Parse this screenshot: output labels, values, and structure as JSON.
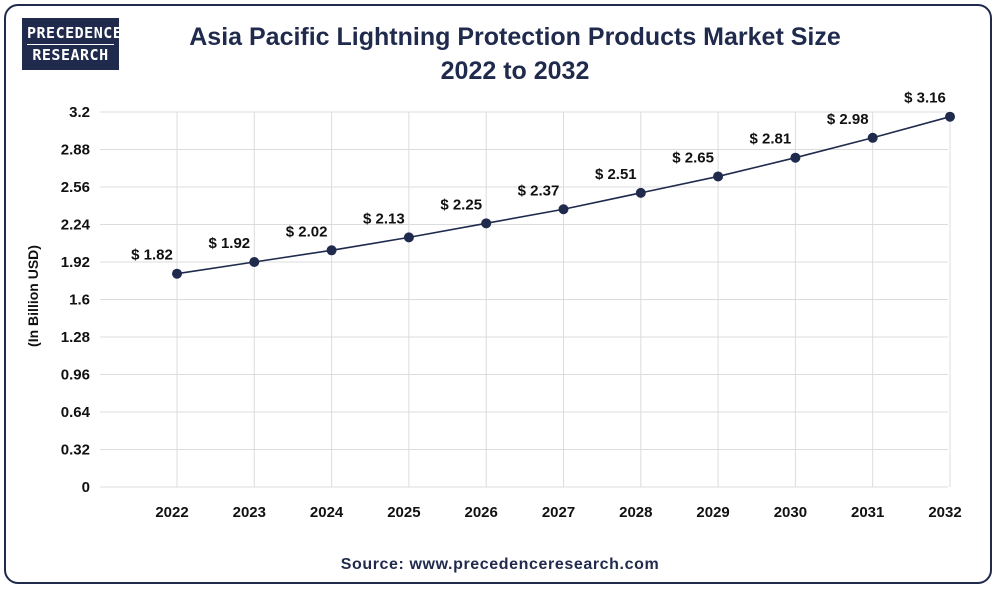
{
  "brand": {
    "line1": "PRECEDENCE",
    "line2": "RESEARCH"
  },
  "source": "Source: www.precedenceresearch.com",
  "colors": {
    "line": "#1f2a4d",
    "grid": "#dcdcdc",
    "text": "#111111",
    "title": "#1f2a4d"
  },
  "chart_data": {
    "type": "line",
    "title": "Asia Pacific Lightning Protection Products Market Size",
    "subtitle": "2022 to 2032",
    "xlabel": "",
    "ylabel": "(In Billion USD)",
    "ylim": [
      0,
      3.2
    ],
    "yticks": [
      "0",
      "0.32",
      "0.64",
      "0.96",
      "1.28",
      "1.6",
      "1.92",
      "2.24",
      "2.56",
      "2.88",
      "3.2"
    ],
    "grid": true,
    "categories": [
      "2022",
      "2023",
      "2024",
      "2025",
      "2026",
      "2027",
      "2028",
      "2029",
      "2030",
      "2031",
      "2032"
    ],
    "series": [
      {
        "name": "Market Size",
        "values": [
          1.82,
          1.92,
          2.02,
          2.13,
          2.25,
          2.37,
          2.51,
          2.65,
          2.81,
          2.98,
          3.16
        ],
        "labels": [
          "$ 1.82",
          "$ 1.92",
          "$ 2.02",
          "$ 2.13",
          "$ 2.25",
          "$ 2.37",
          "$ 2.51",
          "$ 2.65",
          "$ 2.81",
          "$ 2.98",
          "$ 3.16"
        ]
      }
    ]
  }
}
